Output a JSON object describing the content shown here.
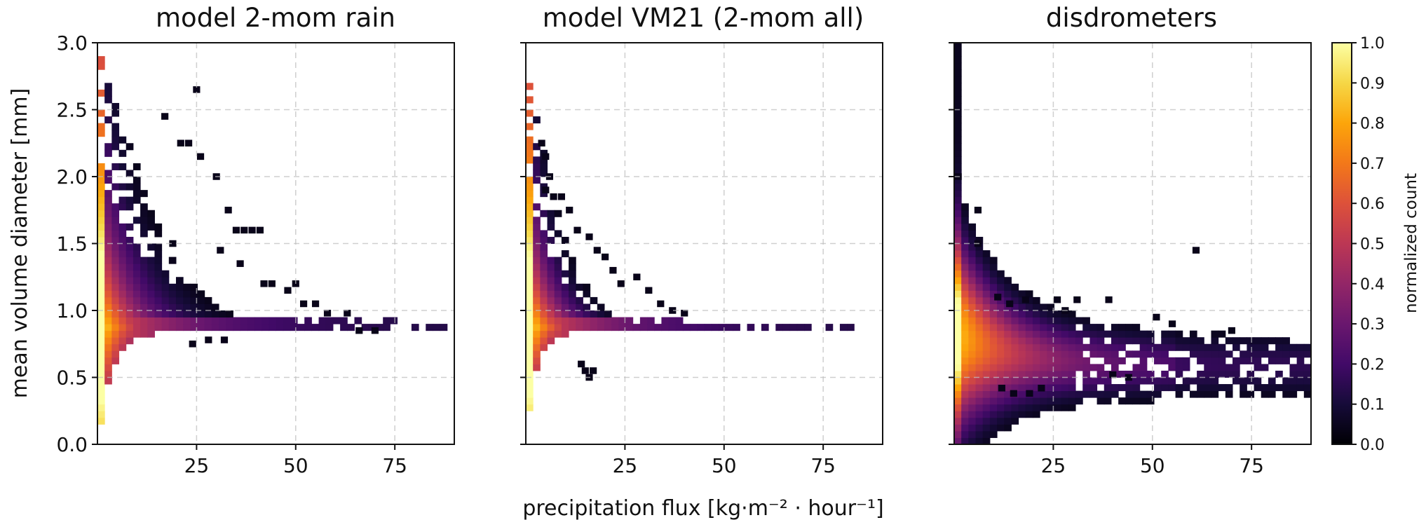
{
  "chart_data": {
    "type": "heatmap",
    "shared_xlabel": "precipitation flux [kg·m⁻² · hour⁻¹]",
    "shared_ylabel": "mean volume diameter [mm]",
    "xlim": [
      0,
      90
    ],
    "ylim": [
      0,
      3
    ],
    "x_ticks": [
      25,
      50,
      75
    ],
    "y_ticks": [
      0.0,
      0.5,
      1.0,
      1.5,
      2.0,
      2.5,
      3.0
    ],
    "y_tick_labels": [
      "0.0",
      "0.5",
      "1.0",
      "1.5",
      "2.0",
      "2.5",
      "3.0"
    ],
    "grid": true,
    "colormap": "inferno",
    "colorbar": {
      "label": "normalized count",
      "range": [
        0.0,
        1.0
      ],
      "ticks": [
        "0.0",
        "0.1",
        "0.2",
        "0.3",
        "0.4",
        "0.5",
        "0.6",
        "0.7",
        "0.8",
        "0.9",
        "1.0"
      ]
    },
    "panels": [
      {
        "title": "model 2-mom rain",
        "mode": "fan",
        "seed": 11,
        "peak_diameter": 0.88,
        "diameter_upper_at_zero_flux": 3.0,
        "diameter_lower_at_zero_flux": 0.0,
        "upper_decay": 18,
        "lower_decay": 3.5,
        "max_flux": 90,
        "sparse_upper": [
          [
            25,
            2.65
          ],
          [
            17,
            2.45
          ],
          [
            21,
            2.25
          ],
          [
            23,
            2.25
          ],
          [
            26,
            2.15
          ],
          [
            30,
            2.0
          ],
          [
            33,
            1.75
          ],
          [
            35,
            1.6
          ],
          [
            37,
            1.6
          ],
          [
            39,
            1.6
          ],
          [
            41,
            1.6
          ],
          [
            19,
            1.5
          ],
          [
            31,
            1.45
          ],
          [
            36,
            1.35
          ],
          [
            42,
            1.2
          ],
          [
            44,
            1.2
          ],
          [
            48,
            1.15
          ],
          [
            50,
            1.2
          ],
          [
            52,
            1.05
          ],
          [
            55,
            1.05
          ],
          [
            58,
            0.98
          ],
          [
            63,
            0.98
          ]
        ],
        "sparse_lower": [
          [
            24,
            0.75
          ],
          [
            28,
            0.78
          ],
          [
            32,
            0.78
          ],
          [
            66,
            0.85
          ],
          [
            70,
            0.85
          ]
        ]
      },
      {
        "title": "model VM21 (2-mom all)",
        "mode": "fan",
        "seed": 23,
        "peak_diameter": 0.88,
        "diameter_upper_at_zero_flux": 3.0,
        "diameter_lower_at_zero_flux": 0.0,
        "upper_decay": 9,
        "lower_decay": 2.5,
        "max_flux": 82,
        "sparse_upper": [
          [
            4,
            2.25
          ],
          [
            5,
            2.15
          ],
          [
            6,
            2.0
          ],
          [
            5,
            1.9
          ],
          [
            7,
            1.85
          ],
          [
            9,
            1.85
          ],
          [
            11,
            1.75
          ],
          [
            13,
            1.6
          ],
          [
            16,
            1.55
          ],
          [
            18,
            1.45
          ],
          [
            20,
            1.4
          ],
          [
            22,
            1.3
          ],
          [
            24,
            1.2
          ],
          [
            28,
            1.25
          ],
          [
            31,
            1.15
          ],
          [
            34,
            1.05
          ],
          [
            37,
            1.0
          ],
          [
            40,
            0.98
          ]
        ],
        "sparse_lower": [
          [
            14,
            0.6
          ],
          [
            15,
            0.55
          ],
          [
            16,
            0.5
          ],
          [
            17,
            0.55
          ]
        ]
      },
      {
        "title": "disdrometers",
        "mode": "band",
        "seed": 37,
        "max_flux": 90,
        "sparse_upper": [
          [
            1,
            2.0
          ],
          [
            6,
            1.75
          ],
          [
            6,
            1.5
          ],
          [
            11,
            1.1
          ],
          [
            14,
            1.05
          ],
          [
            18,
            1.08
          ],
          [
            26,
            1.08
          ],
          [
            28,
            1.0
          ],
          [
            31,
            1.08
          ],
          [
            39,
            1.08
          ],
          [
            51,
            0.95
          ],
          [
            61,
            1.45
          ],
          [
            55,
            0.9
          ],
          [
            70,
            0.85
          ]
        ],
        "sparse_lower": [
          [
            12,
            0.42
          ],
          [
            15,
            0.38
          ],
          [
            19,
            0.38
          ],
          [
            22,
            0.42
          ],
          [
            40,
            0.52
          ],
          [
            44,
            0.5
          ]
        ]
      }
    ]
  }
}
